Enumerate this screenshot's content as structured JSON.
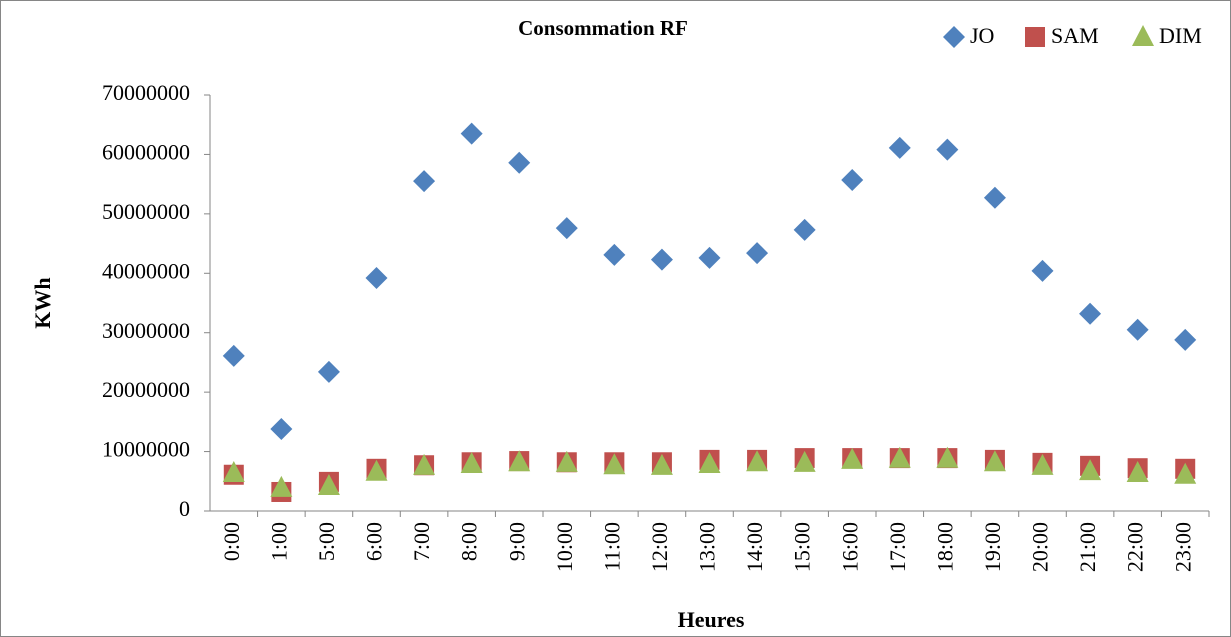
{
  "chart_data": {
    "type": "scatter",
    "title": "Consommation  RF",
    "x_label": "Heures",
    "y_label": "KWh",
    "categories": [
      "0:00",
      "1:00",
      "5:00",
      "6:00",
      "7:00",
      "8:00",
      "9:00",
      "10:00",
      "11:00",
      "12:00",
      "13:00",
      "14:00",
      "15:00",
      "16:00",
      "17:00",
      "18:00",
      "19:00",
      "20:00",
      "21:00",
      "22:00",
      "23:00"
    ],
    "series": [
      {
        "name": "JO",
        "color": "#4f81bd",
        "marker": "diamond",
        "values": [
          26100000,
          13800000,
          23400000,
          39200000,
          55500000,
          63500000,
          58600000,
          47600000,
          43100000,
          42300000,
          42600000,
          43400000,
          47300000,
          55700000,
          61100000,
          60800000,
          52700000,
          40400000,
          33200000,
          30500000,
          28800000
        ]
      },
      {
        "name": "SAM",
        "color": "#c0504d",
        "marker": "square",
        "values": [
          6100000,
          3200000,
          4900000,
          7100000,
          7700000,
          8200000,
          8400000,
          8200000,
          8200000,
          8200000,
          8600000,
          8600000,
          8900000,
          8900000,
          8900000,
          8900000,
          8600000,
          8100000,
          7600000,
          7200000,
          7100000
        ]
      },
      {
        "name": "DIM",
        "color": "#9bbb59",
        "marker": "triangle",
        "values": [
          6400000,
          3900000,
          4200000,
          6600000,
          7600000,
          7900000,
          8200000,
          8100000,
          7700000,
          7600000,
          7900000,
          8200000,
          8100000,
          8600000,
          8800000,
          8800000,
          8200000,
          7600000,
          6700000,
          6400000,
          6100000
        ]
      }
    ],
    "ylim": [
      0,
      70000000
    ],
    "yticks": [
      0,
      10000000,
      20000000,
      30000000,
      40000000,
      50000000,
      60000000,
      70000000
    ],
    "grid": false,
    "legend": "top-right"
  }
}
